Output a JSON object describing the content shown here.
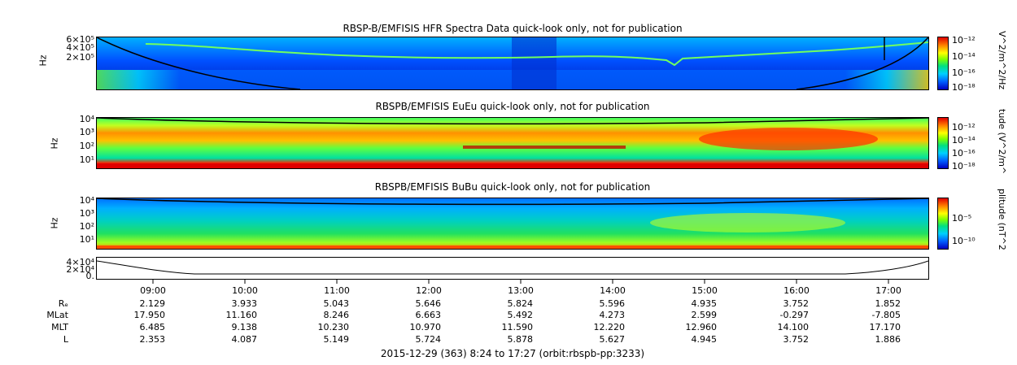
{
  "panels": [
    {
      "title": "RBSP-B/EMFISIS  HFR Spectra Data quick-look only, not for publication",
      "ylabel": "Hz",
      "yticks": [
        "6×10⁵",
        "4×10⁵",
        "2×10⁵"
      ],
      "cb_label": "V^2/m^2/Hz",
      "cb_ticks": [
        "10⁻¹²",
        "10⁻¹⁴",
        "10⁻¹⁶",
        "10⁻¹⁸"
      ]
    },
    {
      "title": "RBSPB/EMFISIS  EuEu quick-look only, not for publication",
      "ylabel": "Hz",
      "yticks": [
        "10⁴",
        "10³",
        "10²",
        "10¹"
      ],
      "cb_label": "tude (V^2/m^",
      "cb_ticks": [
        "10⁻¹²",
        "10⁻¹⁴",
        "10⁻¹⁶",
        "10⁻¹⁸"
      ]
    },
    {
      "title": "RBSPB/EMFISIS  BuBu quick-look only, not for publication",
      "ylabel": "Hz",
      "yticks": [
        "10⁴",
        "10³",
        "10²",
        "10¹"
      ],
      "cb_label": "plitude (nT^2",
      "cb_ticks": [
        "10⁻⁵",
        "10⁻¹⁰"
      ]
    }
  ],
  "line_panel": {
    "yticks": [
      "4×10⁴",
      "2×10⁴",
      "0."
    ]
  },
  "ephemeris": {
    "times": [
      "09:00",
      "10:00",
      "11:00",
      "12:00",
      "13:00",
      "14:00",
      "15:00",
      "16:00",
      "17:00"
    ],
    "rows": [
      {
        "label": "Rₑ",
        "values": [
          "2.129",
          "3.933",
          "5.043",
          "5.646",
          "5.824",
          "5.596",
          "4.935",
          "3.752",
          "1.852"
        ]
      },
      {
        "label": "MLat",
        "values": [
          "17.950",
          "11.160",
          "8.246",
          "6.663",
          "5.492",
          "4.273",
          "2.599",
          "-0.297",
          "-7.805"
        ]
      },
      {
        "label": "MLT",
        "values": [
          "6.485",
          "9.138",
          "10.230",
          "10.970",
          "11.590",
          "12.220",
          "12.960",
          "14.100",
          "17.170"
        ]
      },
      {
        "label": "L",
        "values": [
          "2.353",
          "4.087",
          "5.149",
          "5.724",
          "5.878",
          "5.627",
          "4.945",
          "3.752",
          "1.886"
        ]
      }
    ]
  },
  "footer": "2015-12-29 (363) 8:24 to 17:27 (orbit:rbspb-pp:3233)",
  "chart_data": {
    "type": "heatmap",
    "title": "RBSP-B/EMFISIS  HFR Spectra Data quick-look only, not for publication",
    "time_range": [
      "08:24",
      "17:27"
    ],
    "x": [
      "09:00",
      "10:00",
      "11:00",
      "12:00",
      "13:00",
      "14:00",
      "15:00",
      "16:00",
      "17:00"
    ],
    "series": [
      {
        "name": "Rₑ",
        "values": [
          2.129,
          3.933,
          5.043,
          5.646,
          5.824,
          5.596,
          4.935,
          3.752,
          1.852
        ]
      },
      {
        "name": "MLat",
        "values": [
          17.95,
          11.16,
          8.246,
          6.663,
          5.492,
          4.273,
          2.599,
          -0.297,
          -7.805
        ]
      },
      {
        "name": "MLT",
        "values": [
          6.485,
          9.138,
          10.23,
          10.97,
          11.59,
          12.22,
          12.96,
          14.1,
          17.17
        ]
      },
      {
        "name": "L",
        "values": [
          2.353,
          4.087,
          5.149,
          5.724,
          5.878,
          5.627,
          4.945,
          3.752,
          1.886
        ]
      }
    ],
    "colors": {
      "low": "#0000c0",
      "mid": "#00e080",
      "high": "#e00000"
    }
  }
}
